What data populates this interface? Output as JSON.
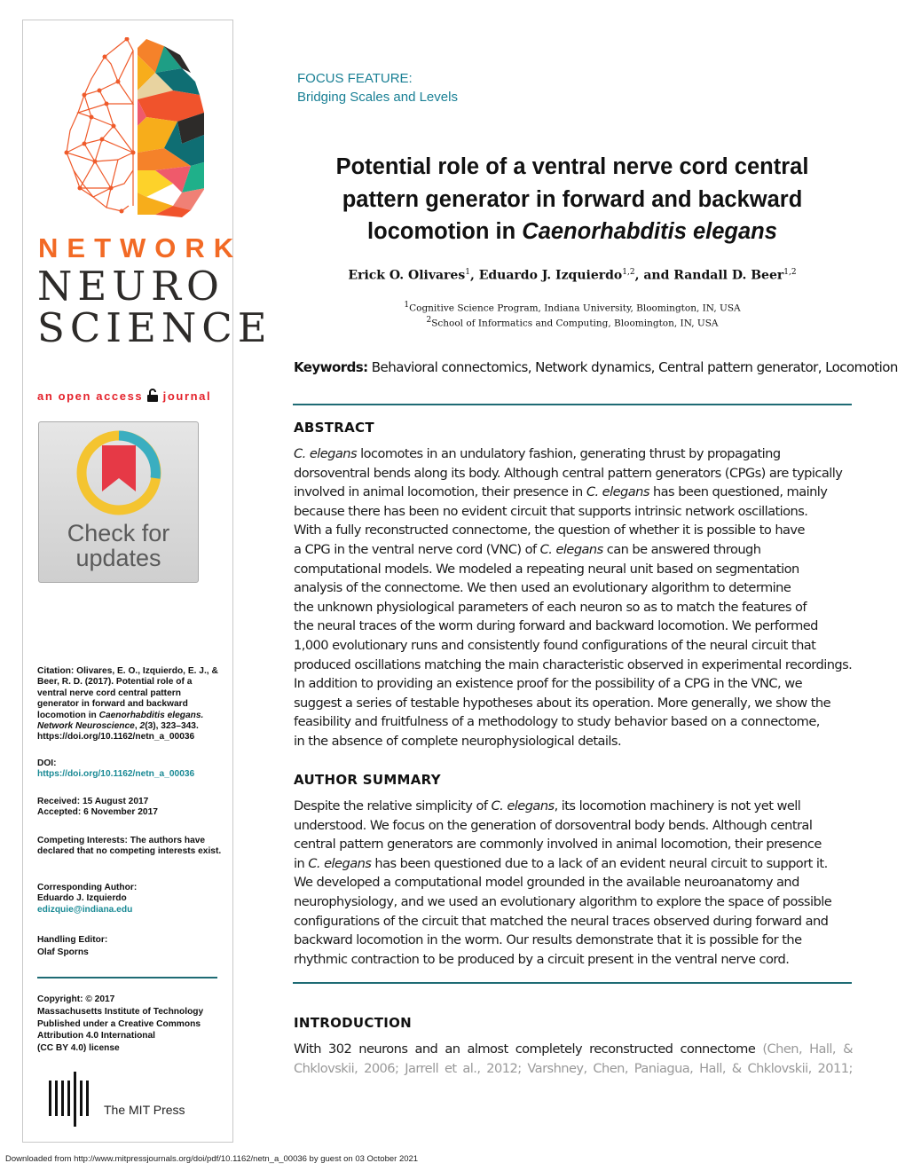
{
  "sidebar": {
    "logo": {
      "line1": "NETWORK",
      "line2": "NEURO",
      "line3": "SCIENCE",
      "colors": {
        "orange": "#f26a25",
        "dark": "#2d2b29"
      }
    },
    "open_access": {
      "before": "an open access",
      "after": "journal",
      "icon": "open-lock-icon"
    },
    "badge": {
      "line1": "Check for",
      "line2": "updates"
    },
    "citation": {
      "label": "Citation:",
      "text": " Olivares, E. O., Izquierdo, E. J., & Beer, R. D. (2017). Potential role of a ventral nerve cord central pattern generator in forward and backward locomotion in ",
      "species": "Caenorhabditis elegans.",
      "journal": "Network Neuroscience",
      "vol_sep": ", ",
      "volume": "2",
      "rest": "(3), 323–343. https://doi.org/10.1162/netn_a_00036"
    },
    "doi": {
      "label": "DOI:",
      "value": "https://doi.org/10.1162/netn_a_00036"
    },
    "received": "Received: 15 August 2017",
    "accepted": "Accepted: 6 November 2017",
    "competing": "Competing Interests: The authors have declared that no competing interests exist.",
    "corresponding": {
      "label": "Corresponding Author:",
      "name": "Eduardo J. Izquierdo",
      "email": "edizquie@indiana.edu"
    },
    "editor": {
      "label": "Handling Editor:",
      "name": "Olaf Sporns"
    },
    "copyright": {
      "label": "Copyright: © 2017",
      "lines": [
        "Massachusetts Institute of Technology",
        "Published under a Creative Commons",
        "Attribution 4.0 International",
        "(CC BY 4.0) license"
      ]
    },
    "publisher": "The MIT Press"
  },
  "header": {
    "focus_label": "FOCUS FEATURE:",
    "focus_title": "Bridging Scales and Levels",
    "accent": "#1a8095"
  },
  "title": {
    "line1": "Potential role of a ventral nerve cord central",
    "line2": "pattern generator in forward and backward",
    "line3_pre": "locomotion in ",
    "line3_italic": "Caenorhabditis elegans"
  },
  "authors": [
    {
      "name": "Erick O. Olivares",
      "aff": "1"
    },
    {
      "name": "Eduardo J. Izquierdo",
      "aff": "1,2"
    },
    {
      "name": "and Randall D. Beer",
      "aff": "1,2"
    }
  ],
  "affiliations": [
    {
      "num": "1",
      "text": "Cognitive Science Program, Indiana University, Bloomington, IN, USA"
    },
    {
      "num": "2",
      "text": "School of Informatics and Computing, Bloomington, IN, USA"
    }
  ],
  "keywords": {
    "label": "Keywords:",
    "value": " Behavioral connectomics, Network dynamics, Central pattern generator, Locomotion"
  },
  "abstract": {
    "heading": "ABSTRACT",
    "lines": [
      [
        {
          "t": "C. elegans",
          "i": true
        },
        {
          "t": " locomotes in an undulatory fashion, generating thrust by propagating"
        }
      ],
      [
        {
          "t": "dorsoventral bends along its body. Although central pattern generators (CPGs) are typically"
        }
      ],
      [
        {
          "t": "involved in animal locomotion, their presence in "
        },
        {
          "t": "C. elegans",
          "i": true
        },
        {
          "t": " has been questioned, mainly"
        }
      ],
      [
        {
          "t": "because there has been no evident circuit that supports intrinsic network oscillations."
        }
      ],
      [
        {
          "t": "With a fully reconstructed connectome, the question of whether it is possible to have"
        }
      ],
      [
        {
          "t": "a CPG in the ventral nerve cord (VNC) of "
        },
        {
          "t": "C. elegans",
          "i": true
        },
        {
          "t": " can be answered through"
        }
      ],
      [
        {
          "t": "computational models. We modeled a repeating neural unit based on segmentation"
        }
      ],
      [
        {
          "t": "analysis of the connectome. We then used an evolutionary algorithm to determine"
        }
      ],
      [
        {
          "t": "the unknown physiological parameters of each neuron so as to match the features of"
        }
      ],
      [
        {
          "t": "the neural traces of the worm during forward and backward locomotion. We performed"
        }
      ],
      [
        {
          "t": "1,000 evolutionary runs and consistently found configurations of the neural circuit that"
        }
      ],
      [
        {
          "t": "produced oscillations matching the main characteristic observed in experimental recordings."
        }
      ],
      [
        {
          "t": "In addition to providing an existence proof for the possibility of a CPG in the VNC, we"
        }
      ],
      [
        {
          "t": "suggest a series of testable hypotheses about its operation. More generally, we show the"
        }
      ],
      [
        {
          "t": "feasibility and fruitfulness of a methodology to study behavior based on a connectome,"
        }
      ],
      [
        {
          "t": "in the absence of complete neurophysiological details."
        }
      ]
    ]
  },
  "author_summary": {
    "heading": "AUTHOR SUMMARY",
    "lines": [
      [
        {
          "t": "Despite the relative simplicity of "
        },
        {
          "t": "C. elegans",
          "i": true
        },
        {
          "t": ", its locomotion machinery is not yet well"
        }
      ],
      [
        {
          "t": "understood. We focus on the generation of dorsoventral body bends. Although central"
        }
      ],
      [
        {
          "t": "central pattern generators are commonly involved in animal locomotion, their presence"
        }
      ],
      [
        {
          "t": "in "
        },
        {
          "t": "C. elegans",
          "i": true
        },
        {
          "t": " has been questioned due to a lack of an evident neural circuit to support it."
        }
      ],
      [
        {
          "t": "We developed a computational model grounded in the available neuroanatomy and"
        }
      ],
      [
        {
          "t": "neurophysiology, and we used an evolutionary algorithm to explore the space of possible"
        }
      ],
      [
        {
          "t": "configurations of the circuit that matched the neural traces observed during forward and"
        }
      ],
      [
        {
          "t": "backward locomotion in the worm. Our results demonstrate that it is possible for the"
        }
      ],
      [
        {
          "t": "rhythmic contraction to be produced by a circuit present in the ventral nerve cord."
        }
      ]
    ]
  },
  "introduction": {
    "heading": "INTRODUCTION",
    "line1": [
      "With",
      "302",
      "neurons",
      "and",
      "an",
      "almost",
      "completely",
      "reconstructed",
      "connectome"
    ],
    "line1_ref": [
      "(Chen,",
      "Hall,",
      "&"
    ],
    "line2_ref": [
      "Chklovskii,",
      "2006;",
      "Jarrell",
      "et",
      "al.,",
      "2012;",
      "Varshney,",
      "Chen,",
      "Paniagua,",
      "Hall,",
      "&",
      "Chklovskii,",
      "2011;"
    ]
  },
  "footer": "Downloaded from http://www.mitpressjournals.org/doi/pdf/10.1162/netn_a_00036 by guest on 03 October 2021"
}
